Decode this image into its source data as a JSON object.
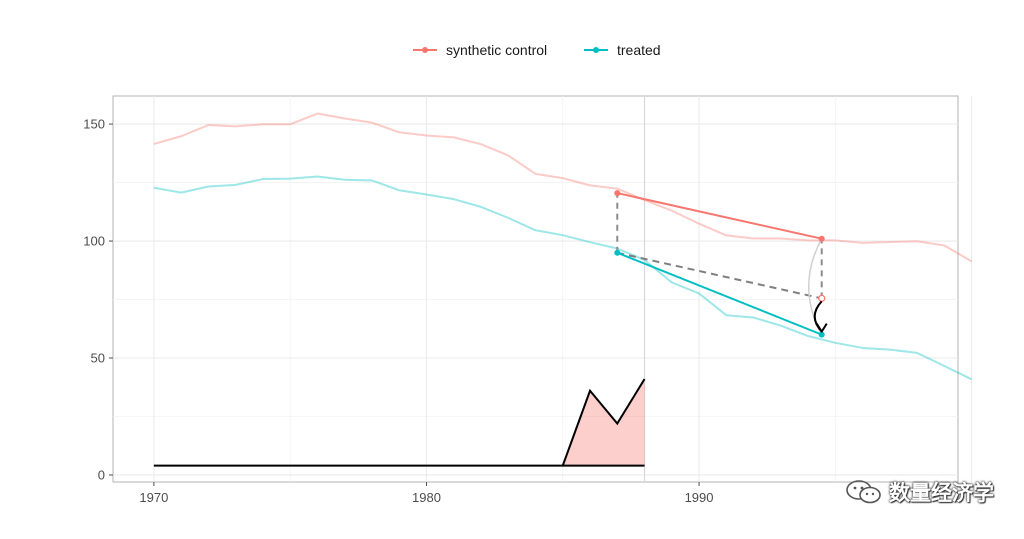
{
  "chart_data": {
    "type": "line",
    "title": "",
    "xlabel": "",
    "ylabel": "",
    "xlim": [
      1968.5,
      1999.5
    ],
    "ylim": [
      -3,
      162
    ],
    "x_ticks": [
      1970,
      1980,
      1990
    ],
    "y_ticks": [
      0,
      50,
      100,
      150
    ],
    "grid": true,
    "legend": {
      "position": "top",
      "entries": [
        "synthetic control",
        "treated"
      ]
    },
    "colors": {
      "synthetic": "#F8766D",
      "treated": "#00BFC4",
      "area": "#F8766D",
      "bumps": "#000000",
      "dashed": "#8c8c8c"
    },
    "series": [
      {
        "name": "synthetic control",
        "x": [
          1970,
          1971,
          1972,
          1973,
          1974,
          1975,
          1976,
          1977,
          1978,
          1979,
          1980,
          1981,
          1982,
          1983,
          1984,
          1985,
          1986,
          1987,
          1988,
          1989,
          1990,
          1991,
          1992,
          1993,
          1994,
          1995,
          1996,
          1997,
          1998,
          1999,
          2000
        ],
        "values": [
          141.5,
          144.8,
          149.6,
          149.0,
          149.9,
          149.9,
          154.5,
          152.4,
          150.6,
          146.5,
          145.1,
          144.3,
          141.4,
          136.6,
          128.7,
          126.9,
          123.8,
          122.4,
          117.5,
          113.0,
          107.4,
          102.4,
          101.1,
          101.1,
          100.3,
          100.3,
          99.2,
          99.6,
          99.9,
          98.1,
          91.3
        ]
      },
      {
        "name": "treated",
        "x": [
          1970,
          1971,
          1972,
          1973,
          1974,
          1975,
          1976,
          1977,
          1978,
          1979,
          1980,
          1981,
          1982,
          1983,
          1984,
          1985,
          1986,
          1987,
          1988,
          1989,
          1990,
          1991,
          1992,
          1993,
          1994,
          1995,
          1996,
          1997,
          1998,
          1999,
          2000
        ],
        "values": [
          122.8,
          120.7,
          123.3,
          124.0,
          126.5,
          126.7,
          127.6,
          126.2,
          125.9,
          121.7,
          119.9,
          117.9,
          114.6,
          109.9,
          104.6,
          102.5,
          99.5,
          96.8,
          91.9,
          82.3,
          77.6,
          68.3,
          67.3,
          63.8,
          59.4,
          56.5,
          54.3,
          53.6,
          52.2,
          46.6,
          40.9
        ]
      }
    ],
    "highlight_segments": [
      {
        "name": "synthetic control",
        "x": [
          1987.0,
          1994.5
        ],
        "values": [
          120.5,
          101.0
        ]
      },
      {
        "name": "treated",
        "x": [
          1987.0,
          1994.5
        ],
        "values": [
          95.0,
          60.0
        ]
      }
    ],
    "counterfactual_segment": {
      "x": [
        1987.0,
        1994.5
      ],
      "values": [
        95.0,
        75.5
      ]
    },
    "vertical_dashes": [
      {
        "x": 1987.0,
        "from": 95.0,
        "to": 120.5
      },
      {
        "x": 1994.5,
        "from": 75.5,
        "to": 101.0
      }
    ],
    "counterfactual_point": {
      "x": 1994.5,
      "value": 75.5
    },
    "effect_arrow": {
      "x": 1994.5,
      "from": 75.5,
      "to": 60.0
    },
    "faint_curve": {
      "x": 1994.5,
      "from": 101.0,
      "to": 60.0
    },
    "bump_line": {
      "x": [
        1970,
        1985.0,
        1986.0,
        1987.0,
        1988.0
      ],
      "values": [
        4,
        4,
        36,
        22,
        41
      ]
    },
    "bump_area": {
      "x": [
        1985.0,
        1986.0,
        1987.0,
        1988.0
      ],
      "values": [
        4,
        36,
        22,
        41
      ],
      "baseline": 4,
      "baseline_end": 1988.0
    }
  },
  "watermark": {
    "text": "数量经济学",
    "icon": "wechat-icon"
  }
}
